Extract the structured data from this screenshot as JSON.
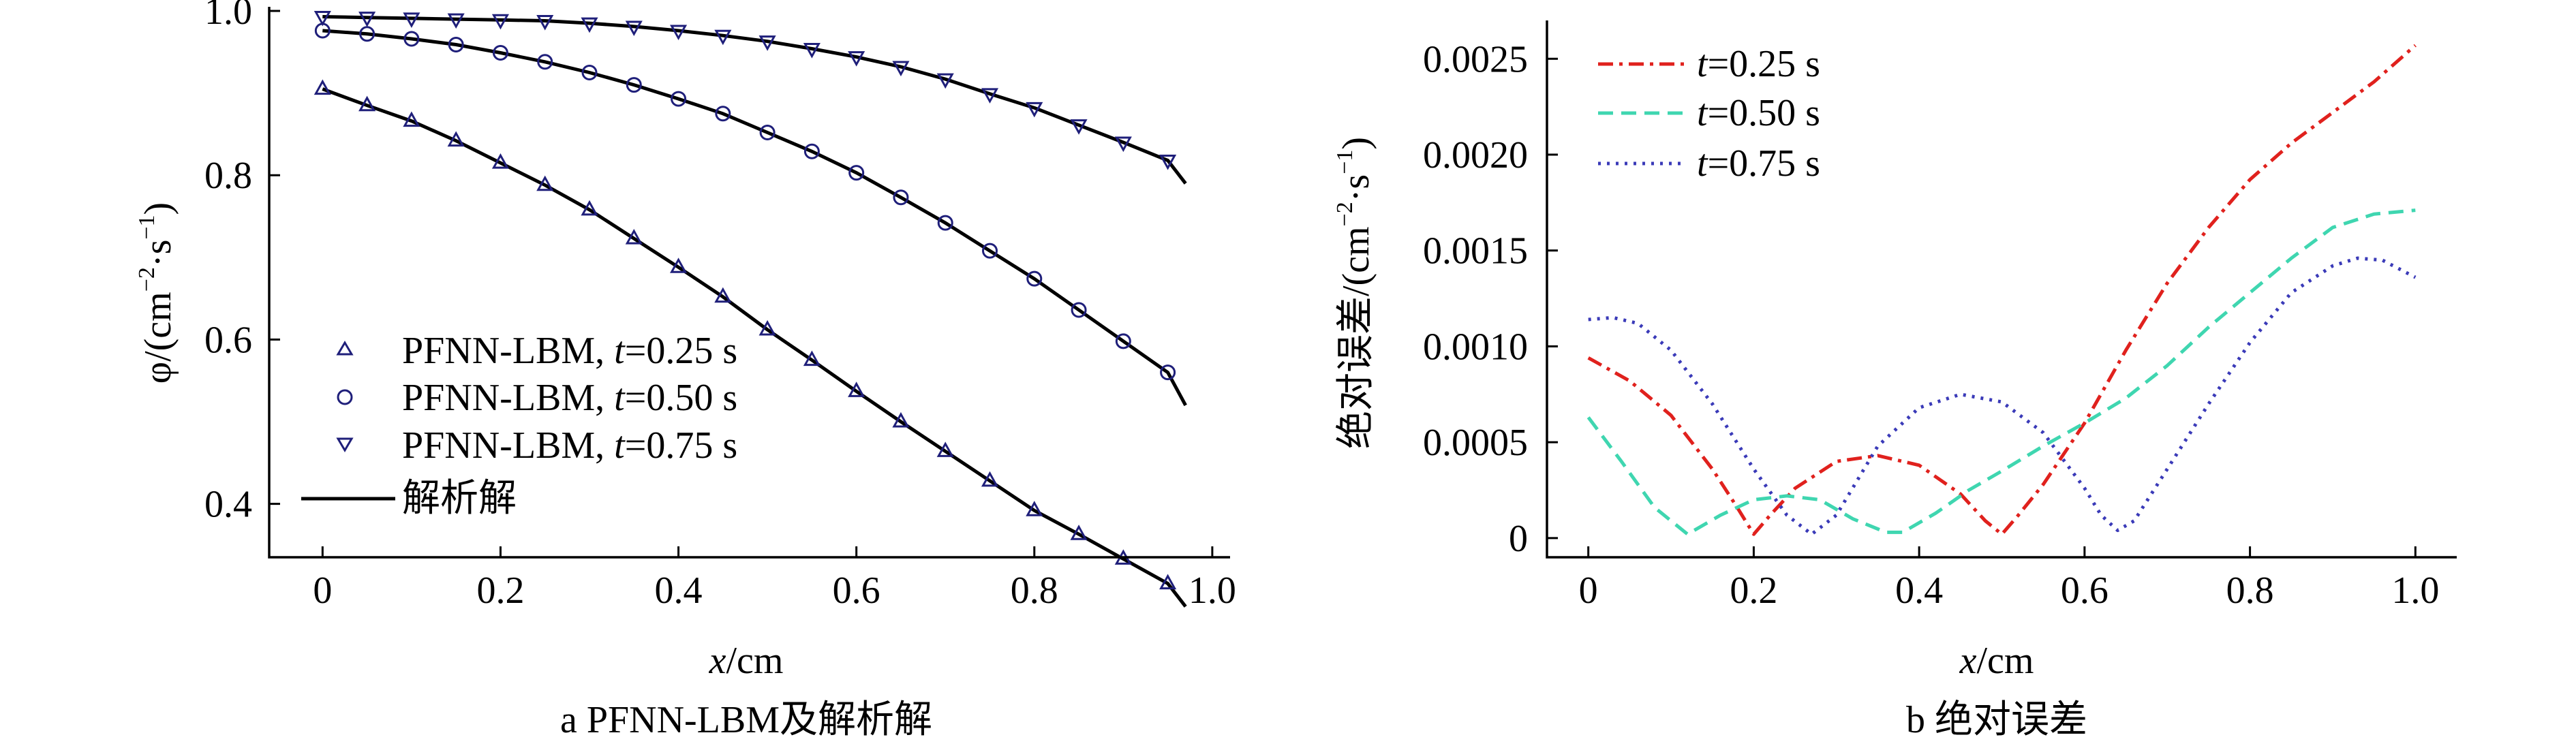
{
  "figure": {
    "panels": [
      {
        "caption": "a  PFNN-LBM及解析解",
        "ylabel_main": "φ/(cm",
        "ylabel_exp1": "−2",
        "ylabel_mid": "·s",
        "ylabel_exp2": "−1",
        "ylabel_end": ")",
        "xlabel_var": "x",
        "xlabel_unit": "/cm",
        "xtick_labels": [
          "0",
          "0.2",
          "0.4",
          "0.6",
          "0.8",
          "1.0"
        ],
        "ytick_labels": [
          "0.4",
          "0.6",
          "0.8",
          "1.0"
        ],
        "legend": [
          {
            "prefix": "PFNN-LBM, ",
            "var": "t",
            "suffix": "=0.25 s",
            "marker": "triangle-up"
          },
          {
            "prefix": "PFNN-LBM, ",
            "var": "t",
            "suffix": "=0.50 s",
            "marker": "circle"
          },
          {
            "prefix": "PFNN-LBM, ",
            "var": "t",
            "suffix": "=0.75 s",
            "marker": "triangle-down"
          },
          {
            "prefix": "解析解",
            "var": "",
            "suffix": "",
            "marker": "line"
          }
        ]
      },
      {
        "caption": "b  绝对误差",
        "ylabel_main": "绝对误差/(cm",
        "ylabel_exp1": "−2",
        "ylabel_mid": "·s",
        "ylabel_exp2": "−1",
        "ylabel_end": ")",
        "xlabel_var": "x",
        "xlabel_unit": "/cm",
        "xtick_labels": [
          "0",
          "0.2",
          "0.4",
          "0.6",
          "0.8",
          "1.0"
        ],
        "ytick_labels": [
          "0",
          "0.0005",
          "0.0010",
          "0.0015",
          "0.0020",
          "0.0025"
        ],
        "legend": [
          {
            "var": "t",
            "suffix": "=0.25 s"
          },
          {
            "var": "t",
            "suffix": "=0.50 s"
          },
          {
            "var": "t",
            "suffix": "=0.75 s"
          }
        ]
      }
    ]
  },
  "colors": {
    "axis": "#000000",
    "marker": "#1f1f7a",
    "err_025": "#e0211d",
    "err_050": "#3fd6b0",
    "err_075": "#3a3ab8"
  },
  "chart_data": [
    {
      "type": "line",
      "xlabel": "x/cm",
      "ylabel": "φ/(cm−2·s−1)",
      "xlim": [
        -0.06,
        1.02
      ],
      "ylim": [
        0.335,
        1.005
      ],
      "series": [
        {
          "name": "PFNN-LBM, t=0.25 s",
          "marker": "triangle-up",
          "x": [
            0,
            0.05,
            0.1,
            0.15,
            0.2,
            0.25,
            0.3,
            0.35,
            0.4,
            0.45,
            0.5,
            0.55,
            0.6,
            0.65,
            0.7,
            0.75,
            0.8,
            0.85,
            0.9,
            0.95
          ],
          "y": [
            0.905,
            0.885,
            0.866,
            0.842,
            0.815,
            0.788,
            0.758,
            0.723,
            0.688,
            0.652,
            0.612,
            0.575,
            0.537,
            0.5,
            0.464,
            0.428,
            0.392,
            0.363,
            0.333,
            0.303
          ]
        },
        {
          "name": "PFNN-LBM, t=0.50 s",
          "marker": "circle",
          "x": [
            0,
            0.05,
            0.1,
            0.15,
            0.2,
            0.25,
            0.3,
            0.35,
            0.4,
            0.45,
            0.5,
            0.55,
            0.6,
            0.65,
            0.7,
            0.75,
            0.8,
            0.85,
            0.9,
            0.95
          ],
          "y": [
            0.976,
            0.972,
            0.966,
            0.959,
            0.949,
            0.938,
            0.925,
            0.91,
            0.893,
            0.875,
            0.852,
            0.829,
            0.803,
            0.773,
            0.742,
            0.708,
            0.674,
            0.636,
            0.598,
            0.56
          ]
        },
        {
          "name": "PFNN-LBM, t=0.75 s",
          "marker": "triangle-down",
          "x": [
            0,
            0.05,
            0.1,
            0.15,
            0.2,
            0.25,
            0.3,
            0.35,
            0.4,
            0.45,
            0.5,
            0.55,
            0.6,
            0.65,
            0.7,
            0.75,
            0.8,
            0.85,
            0.9,
            0.95
          ],
          "y": [
            0.993,
            0.992,
            0.991,
            0.99,
            0.989,
            0.988,
            0.985,
            0.981,
            0.976,
            0.97,
            0.963,
            0.954,
            0.944,
            0.932,
            0.917,
            0.899,
            0.882,
            0.861,
            0.84,
            0.818
          ]
        },
        {
          "name": "解析解",
          "x": [
            0,
            0.05,
            0.1,
            0.15,
            0.2,
            0.25,
            0.3,
            0.35,
            0.4,
            0.45,
            0.5,
            0.55,
            0.6,
            0.65,
            0.7,
            0.75,
            0.8,
            0.85,
            0.9,
            0.95,
            0.97
          ],
          "y_by_t": {
            "0.25": [
              0.905,
              0.885,
              0.866,
              0.842,
              0.815,
              0.788,
              0.758,
              0.723,
              0.688,
              0.652,
              0.612,
              0.575,
              0.537,
              0.5,
              0.464,
              0.428,
              0.392,
              0.363,
              0.333,
              0.303,
              0.275
            ],
            "0.50": [
              0.976,
              0.972,
              0.966,
              0.959,
              0.949,
              0.938,
              0.925,
              0.91,
              0.893,
              0.875,
              0.852,
              0.829,
              0.803,
              0.773,
              0.742,
              0.708,
              0.674,
              0.636,
              0.598,
              0.56,
              0.52
            ],
            "0.75": [
              0.993,
              0.992,
              0.991,
              0.99,
              0.989,
              0.988,
              0.985,
              0.981,
              0.976,
              0.97,
              0.963,
              0.954,
              0.944,
              0.932,
              0.917,
              0.899,
              0.882,
              0.861,
              0.84,
              0.818,
              0.79
            ]
          }
        }
      ]
    },
    {
      "type": "line",
      "xlabel": "x/cm",
      "ylabel": "绝对误差/(cm−2·s−1)",
      "xlim": [
        -0.05,
        1.05
      ],
      "ylim": [
        -0.0001,
        0.0027
      ],
      "series": [
        {
          "name": "t=0.25 s",
          "linestyle": "dashdot",
          "x": [
            0,
            0.05,
            0.1,
            0.15,
            0.18,
            0.2,
            0.22,
            0.25,
            0.3,
            0.35,
            0.4,
            0.45,
            0.48,
            0.5,
            0.52,
            0.55,
            0.6,
            0.65,
            0.7,
            0.75,
            0.8,
            0.85,
            0.9,
            0.95,
            1.0
          ],
          "y": [
            0.00094,
            0.00082,
            0.00064,
            0.00036,
            0.00016,
            2e-05,
            0.00012,
            0.00026,
            0.0004,
            0.00043,
            0.00038,
            0.00023,
            9e-05,
            2e-05,
            0.00012,
            0.00028,
            0.0006,
            0.00098,
            0.00133,
            0.00162,
            0.00187,
            0.00206,
            0.00222,
            0.00238,
            0.00257
          ]
        },
        {
          "name": "t=0.50 s",
          "linestyle": "dashed",
          "x": [
            0,
            0.04,
            0.08,
            0.12,
            0.16,
            0.2,
            0.24,
            0.28,
            0.32,
            0.36,
            0.38,
            0.42,
            0.46,
            0.5,
            0.55,
            0.6,
            0.65,
            0.7,
            0.75,
            0.8,
            0.85,
            0.9,
            0.95,
            1.0
          ],
          "y": [
            0.00063,
            0.0004,
            0.00016,
            2e-05,
            0.00012,
            0.0002,
            0.00022,
            0.0002,
            0.0001,
            3e-05,
            3e-05,
            0.00013,
            0.00025,
            0.00035,
            0.00048,
            0.0006,
            0.00073,
            0.0009,
            0.0011,
            0.00128,
            0.00146,
            0.00162,
            0.00169,
            0.00171
          ]
        },
        {
          "name": "t=0.75 s",
          "linestyle": "dotted",
          "x": [
            0,
            0.03,
            0.06,
            0.1,
            0.15,
            0.2,
            0.24,
            0.27,
            0.3,
            0.35,
            0.4,
            0.45,
            0.5,
            0.55,
            0.6,
            0.62,
            0.64,
            0.66,
            0.7,
            0.75,
            0.8,
            0.85,
            0.9,
            0.93,
            0.96,
            1.0
          ],
          "y": [
            0.00114,
            0.00115,
            0.00112,
            0.00098,
            0.0007,
            0.00036,
            0.00012,
            2e-05,
            0.00012,
            0.00048,
            0.00068,
            0.00075,
            0.00071,
            0.00055,
            0.00026,
            0.00012,
            4e-05,
            9e-05,
            0.00036,
            0.0007,
            0.00102,
            0.00128,
            0.00142,
            0.00146,
            0.00145,
            0.00136
          ]
        }
      ]
    }
  ]
}
